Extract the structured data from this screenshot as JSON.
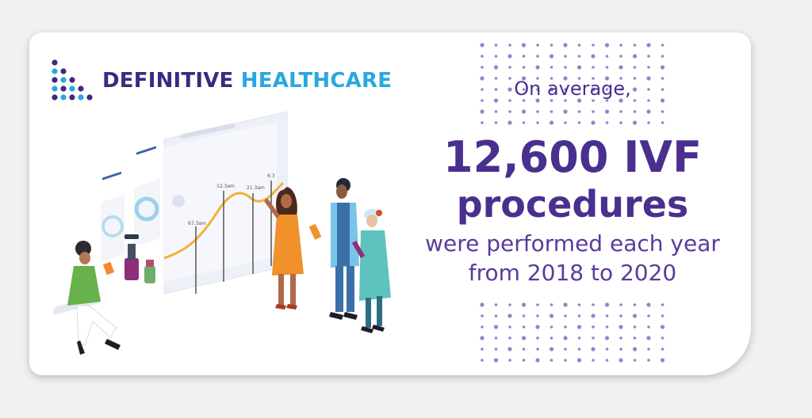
{
  "brand": {
    "name_part1": "DEFINITIVE",
    "name_part2": "HEALTHCARE",
    "color_primary": "#3d2882",
    "color_secondary": "#29a8e0"
  },
  "headline": {
    "intro": "On average,",
    "figure": "12,600 IVF",
    "subject": "procedures",
    "detail_line1": "were performed each year",
    "detail_line2": "from 2018 to 2020"
  },
  "illustration": {
    "chart_labels": [
      "67.3am",
      "12.3am",
      "21.3am",
      "6:3"
    ]
  },
  "colors": {
    "text_purple": "#4a2f8f",
    "dot_purple": "#9b7fd1",
    "background": "#f1f1f1"
  }
}
